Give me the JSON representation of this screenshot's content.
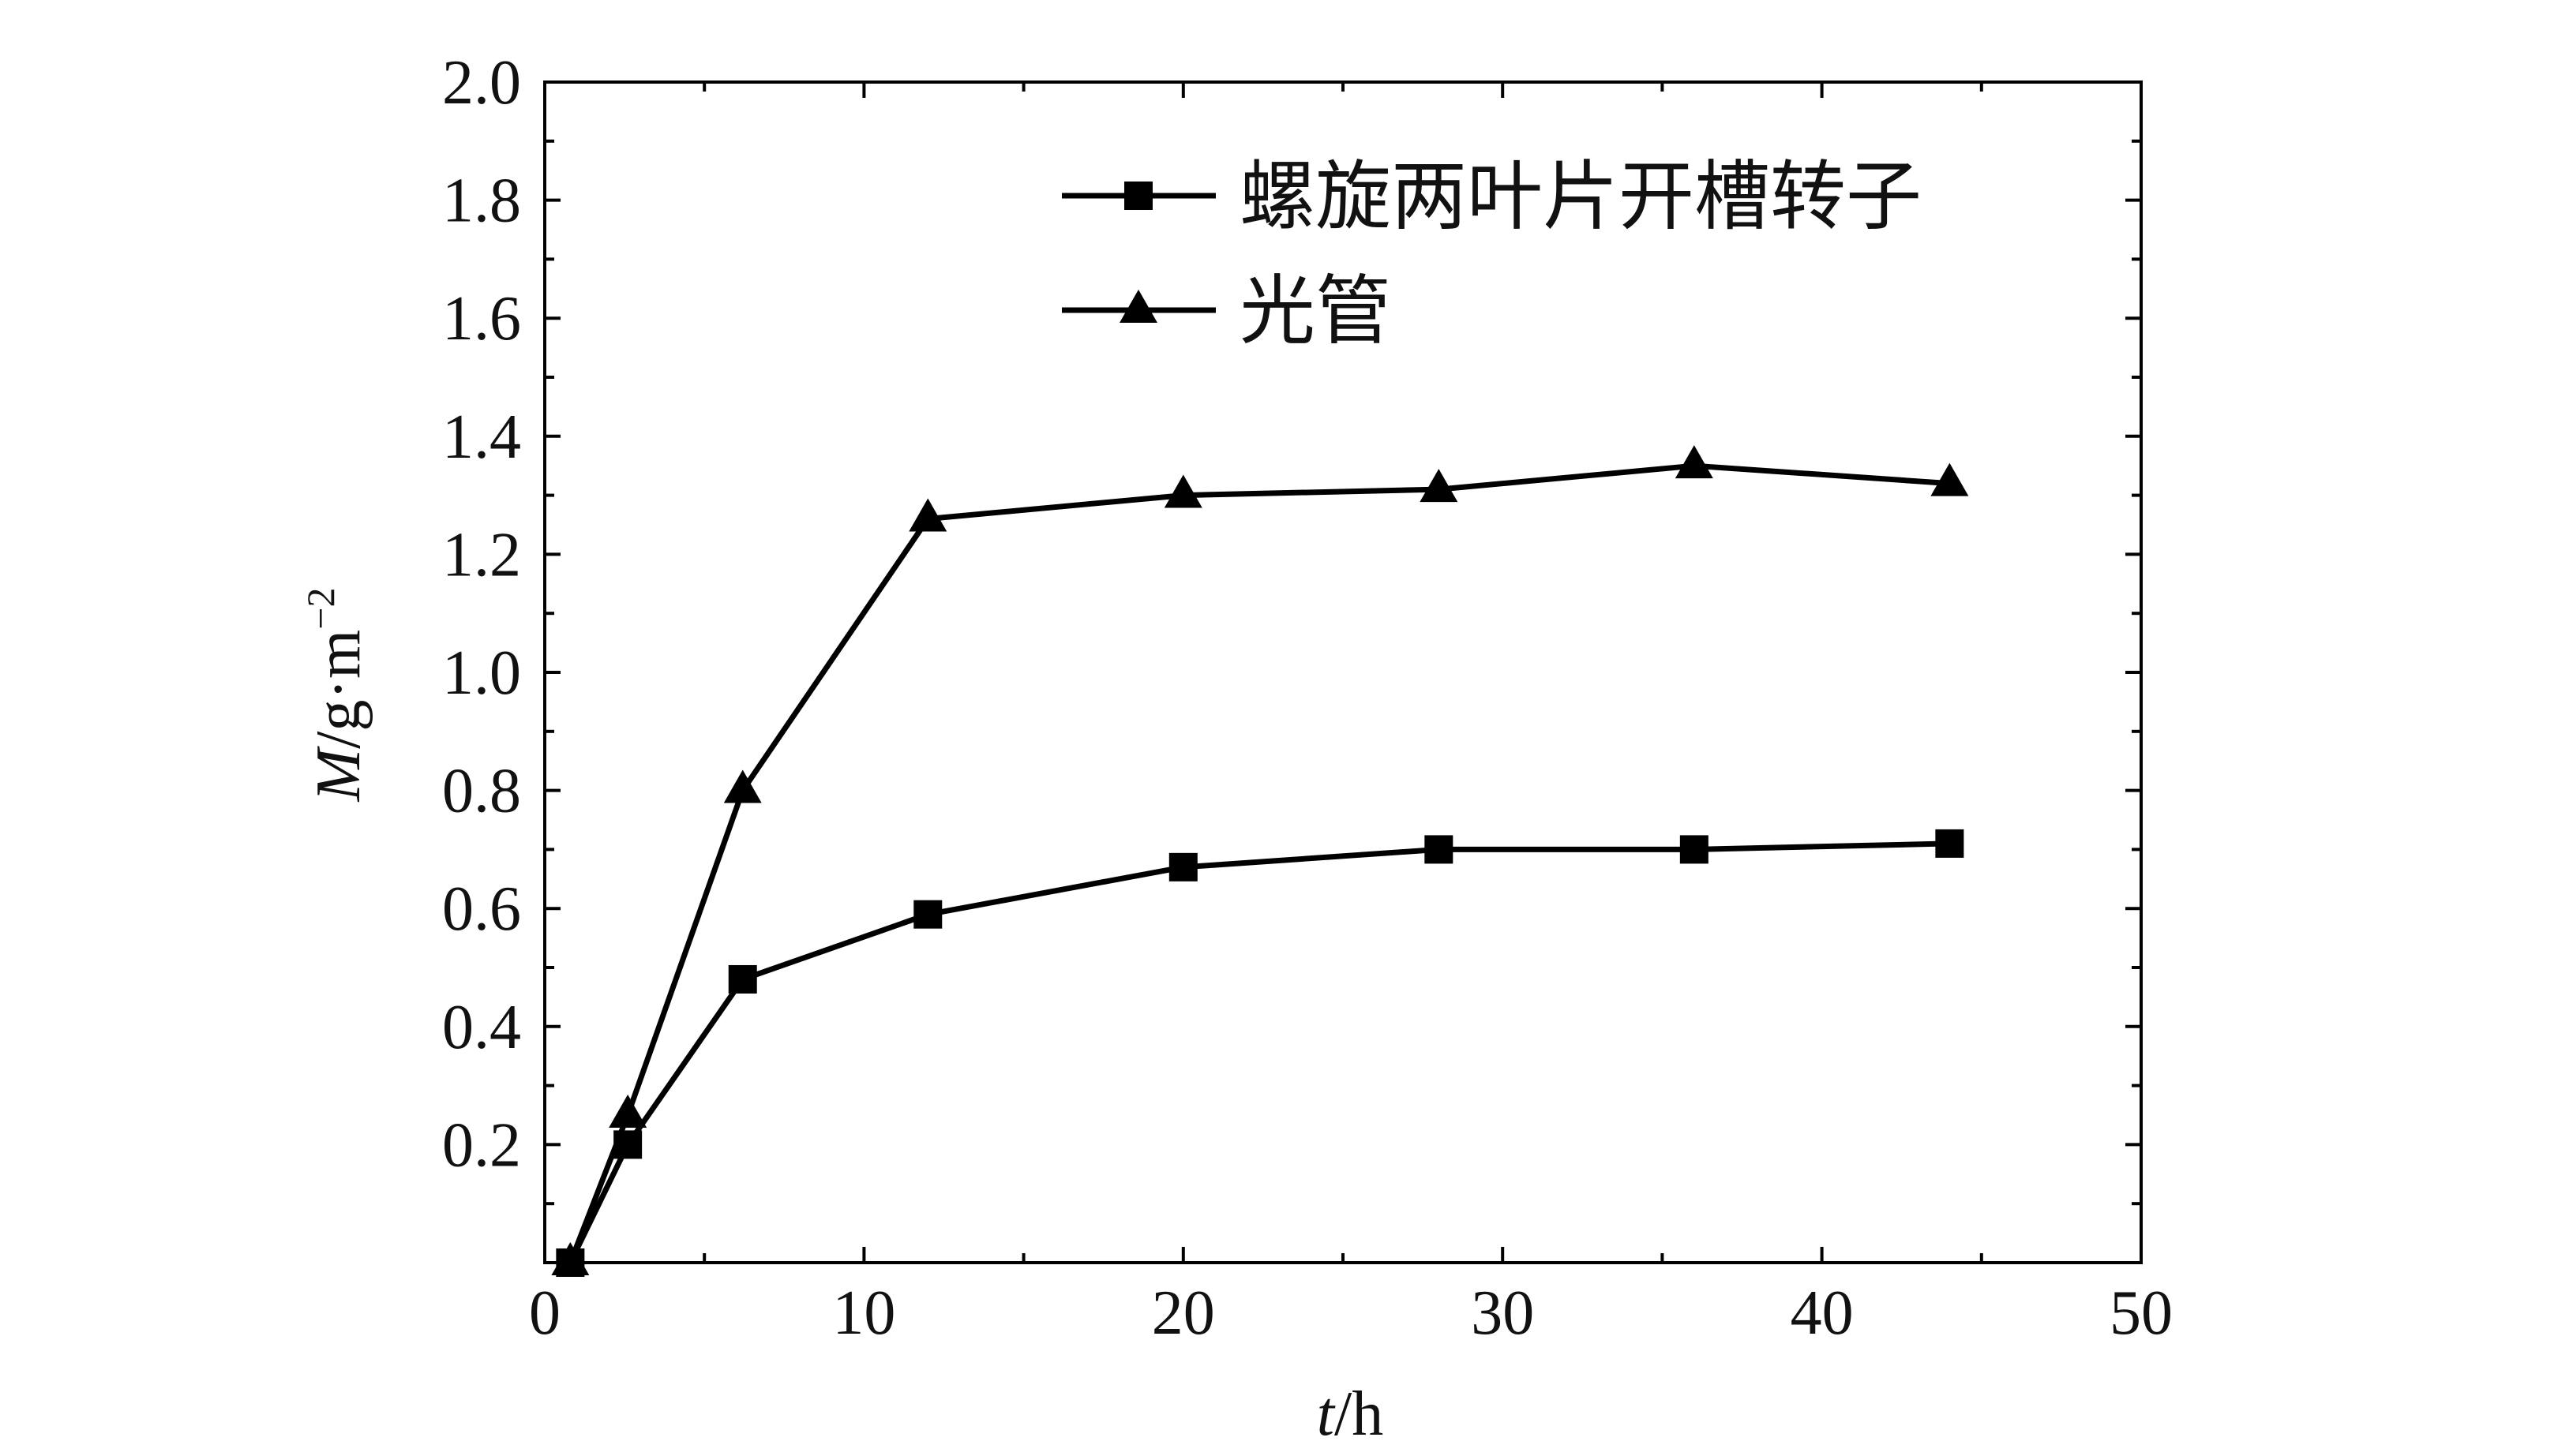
{
  "chart_data": {
    "type": "line",
    "xlabel": {
      "var": "t",
      "unit": "/h"
    },
    "ylabel": {
      "var": "M",
      "unit": "/g·m",
      "sup": "−2"
    },
    "xlim": [
      0,
      50
    ],
    "ylim": [
      0,
      2.0
    ],
    "x_ticks": [
      0,
      10,
      20,
      30,
      40,
      50
    ],
    "x_tick_labels": [
      "0",
      "10",
      "20",
      "30",
      "40",
      "50"
    ],
    "y_ticks": [
      0.2,
      0.4,
      0.6,
      0.8,
      1.0,
      1.2,
      1.4,
      1.6,
      1.8,
      2.0
    ],
    "y_tick_labels": [
      "0.2",
      "0.4",
      "0.6",
      "0.8",
      "1.0",
      "1.2",
      "1.4",
      "1.6",
      "1.8",
      "2.0"
    ],
    "grid": false,
    "legend_position": "top-right",
    "colors": {
      "line": "#000000",
      "marker": "#000000"
    },
    "series": [
      {
        "name": "螺旋两叶片开槽转子",
        "marker": "square",
        "x": [
          0.8,
          2.6,
          6.2,
          12,
          20,
          28,
          36,
          44
        ],
        "y": [
          0.0,
          0.2,
          0.48,
          0.59,
          0.67,
          0.7,
          0.7,
          0.71
        ]
      },
      {
        "name": "光管",
        "marker": "triangle",
        "x": [
          0.8,
          2.6,
          6.2,
          12,
          20,
          28,
          36,
          44
        ],
        "y": [
          0.0,
          0.25,
          0.8,
          1.26,
          1.3,
          1.31,
          1.35,
          1.32
        ]
      }
    ]
  }
}
